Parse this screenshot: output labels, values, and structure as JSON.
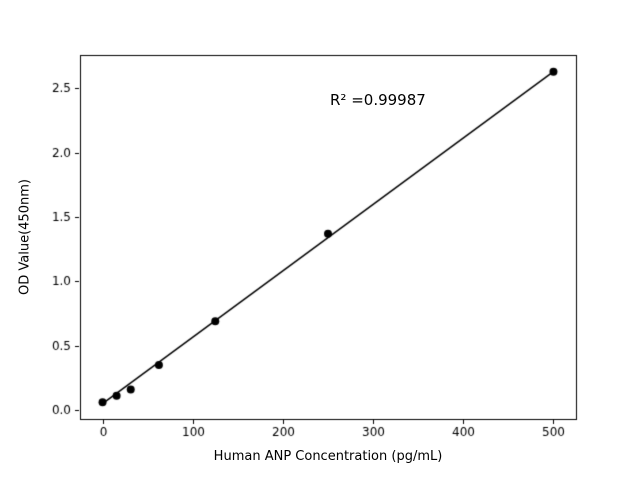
{
  "chart_data": {
    "type": "scatter",
    "title": "",
    "xlabel": "Human ANP Concentration (pg/mL)",
    "ylabel": "OD Value(450nm)",
    "x": [
      0,
      15.6,
      31.25,
      62.5,
      125,
      250,
      500
    ],
    "y": [
      0.06,
      0.11,
      0.16,
      0.35,
      0.69,
      1.37,
      2.63
    ],
    "fit_line": {
      "x": [
        0,
        500
      ],
      "y": [
        0.05,
        2.63
      ]
    },
    "annotation": {
      "text": "R² =0.99987",
      "x": 250,
      "y": 2.41
    },
    "xlim": [
      -25,
      525
    ],
    "ylim": [
      -0.07,
      2.76
    ],
    "xticks": [
      0,
      100,
      200,
      300,
      400,
      500
    ],
    "yticks": [
      0.0,
      0.5,
      1.0,
      1.5,
      2.0,
      2.5
    ],
    "ytick_decimals": 1,
    "grid": false,
    "legend": "none",
    "marker_color": "#000000",
    "line_color": "#000000",
    "axis_color": "#000000",
    "background": "#ffffff"
  }
}
